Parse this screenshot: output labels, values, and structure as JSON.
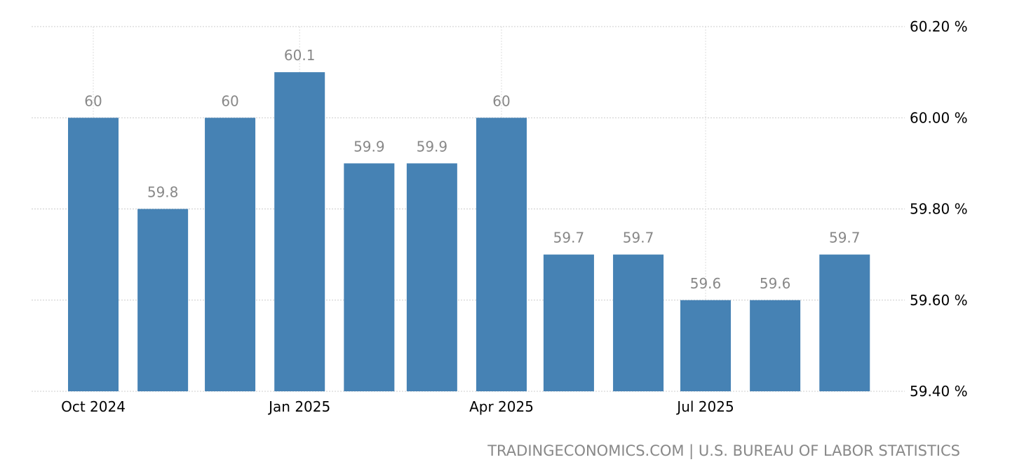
{
  "chart_data": {
    "type": "bar",
    "title": "",
    "xlabel": "",
    "ylabel": "",
    "categories": [
      "2024-10",
      "2024-11",
      "2024-12",
      "2025-01",
      "2025-02",
      "2025-03",
      "2025-04",
      "2025-05",
      "2025-06",
      "2025-07",
      "2025-08",
      "2025-09"
    ],
    "values": [
      60,
      59.8,
      60,
      60.1,
      59.9,
      59.9,
      60,
      59.7,
      59.7,
      59.6,
      59.6,
      59.7
    ],
    "data_labels": [
      "60",
      "59.8",
      "60",
      "60.1",
      "59.9",
      "59.9",
      "60",
      "59.7",
      "59.7",
      "59.6",
      "59.6",
      "59.7"
    ],
    "ylim": [
      59.4,
      60.2
    ],
    "y_ticks": [
      59.4,
      59.6,
      59.8,
      60.0,
      60.2
    ],
    "y_tick_labels": [
      "59.40 %",
      "59.60 %",
      "59.80 %",
      "60.00 %",
      "60.20 %"
    ],
    "x_ticks": [
      "2024-10",
      "2025-01",
      "2025-04",
      "2025-07"
    ],
    "x_tick_labels": [
      "Oct 2024",
      "Jan 2025",
      "Apr 2025",
      "Jul 2025"
    ],
    "grid": true,
    "y_axis_side": "right",
    "bar_color": "#4682B4",
    "source": "TRADINGECONOMICS.COM | U.S. BUREAU OF LABOR STATISTICS"
  }
}
